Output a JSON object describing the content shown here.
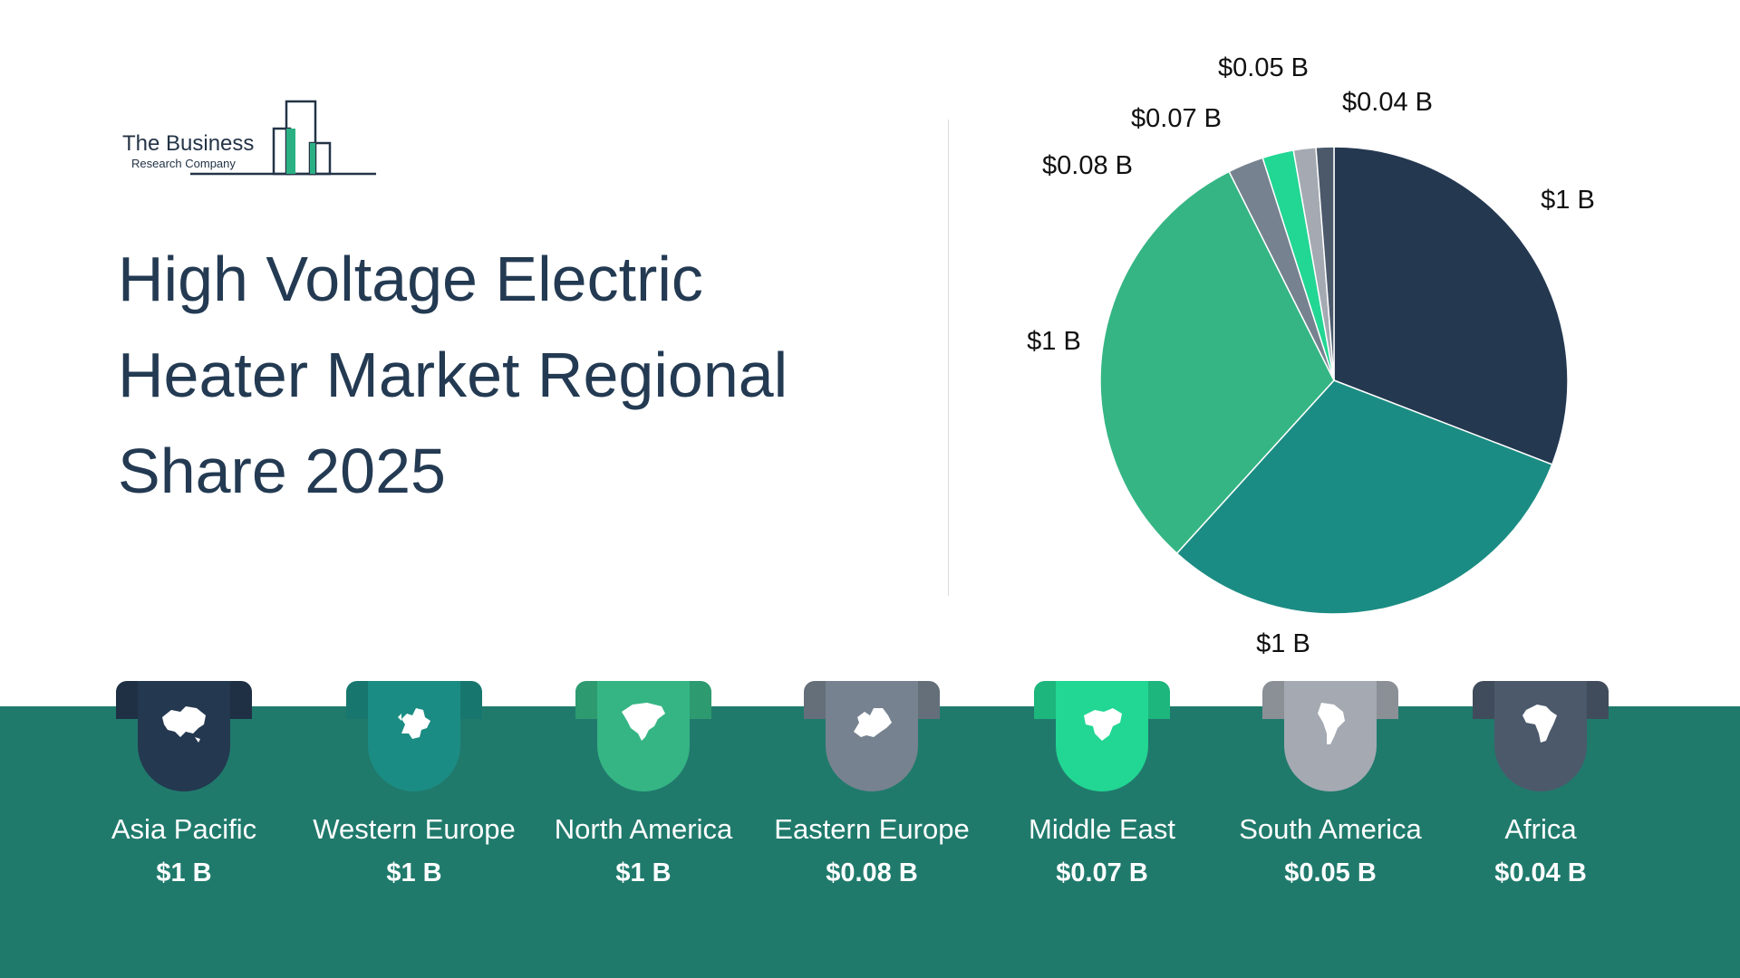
{
  "header": {
    "logo_name": "The Business",
    "logo_sub": "Research Company",
    "title": "High Voltage Electric Heater Market Regional Share 2025"
  },
  "chart_data": {
    "type": "pie",
    "title": "High Voltage Electric Heater Market Regional Share 2025",
    "value_unit": "USD billion",
    "slices": [
      {
        "name": "Asia Pacific",
        "value": 1.0,
        "label": "$1 B",
        "color": "#243850"
      },
      {
        "name": "Western Europe",
        "value": 1.0,
        "label": "$1 B",
        "color": "#1b8c83"
      },
      {
        "name": "North America",
        "value": 1.0,
        "label": "$1 B",
        "color": "#35b584"
      },
      {
        "name": "Eastern Europe",
        "value": 0.08,
        "label": "$0.08 B",
        "color": "#76828f"
      },
      {
        "name": "Middle East",
        "value": 0.07,
        "label": "$0.07 B",
        "color": "#22d693"
      },
      {
        "name": "South America",
        "value": 0.05,
        "label": "$0.05 B",
        "color": "#a4a9b2"
      },
      {
        "name": "Africa",
        "value": 0.04,
        "label": "$0.04 B",
        "color": "#4b596b"
      }
    ]
  },
  "regions": [
    {
      "name": "Asia Pacific",
      "value": "$1 B",
      "color": "#243850",
      "icon": "asia-map-icon"
    },
    {
      "name": "Western Europe",
      "value": "$1 B",
      "color": "#1b8c83",
      "icon": "western-europe-map-icon"
    },
    {
      "name": "North America",
      "value": "$1 B",
      "color": "#35b584",
      "icon": "north-america-map-icon"
    },
    {
      "name": "Eastern Europe",
      "value": "$0.08 B",
      "color": "#76828f",
      "icon": "eastern-europe-map-icon"
    },
    {
      "name": "Middle East",
      "value": "$0.07 B",
      "color": "#22d693",
      "icon": "middle-east-map-icon"
    },
    {
      "name": "South America",
      "value": "$0.05 B",
      "color": "#a4a9b2",
      "icon": "south-america-map-icon"
    },
    {
      "name": "Africa",
      "value": "$0.04 B",
      "color": "#4b596b",
      "icon": "africa-map-icon"
    }
  ],
  "colors": {
    "band": "#207a6c",
    "title": "#233a52",
    "logo_accent": "#2bb083"
  }
}
